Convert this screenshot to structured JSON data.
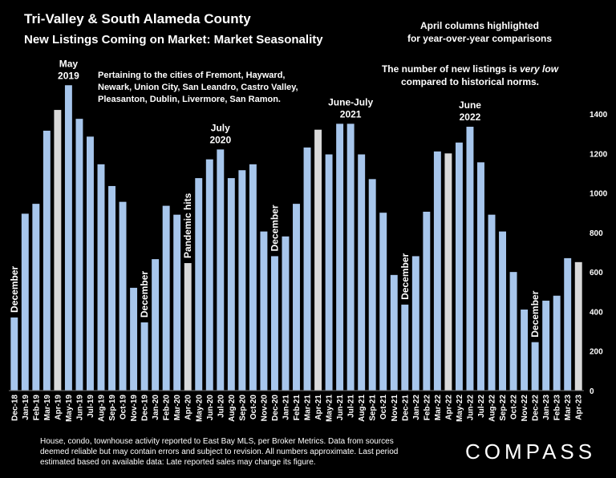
{
  "chart_data": {
    "type": "bar",
    "title": "Tri-Valley & South Alameda County",
    "subtitle": "New Listings Coming on Market: Market Seasonality",
    "cities_note": [
      "Pertaining to the cities of Fremont, Hayward,",
      "Newark, Union City, San Leandro, Castro Valley,",
      "Pleasanton, Dublin, Livermore, San Ramon."
    ],
    "highlight_note": [
      "April columns highlighted",
      "for year-over-year comparisons"
    ],
    "low_note_prefix": "The number of new listings is ",
    "low_note_emph": "very low",
    "low_note_line2": "compared to historical norms.",
    "categories": [
      "Dec-18",
      "Jan-19",
      "Feb-19",
      "Mar-19",
      "Apr-19",
      "May-19",
      "Jun-19",
      "Jul-19",
      "Aug-19",
      "Sep-19",
      "Oct-19",
      "Nov-19",
      "Dec-19",
      "Jan-20",
      "Feb-20",
      "Mar-20",
      "Apr-20",
      "May-20",
      "Jun-20",
      "Jul-20",
      "Aug-20",
      "Sep-20",
      "Oct-20",
      "Nov-20",
      "Dec-20",
      "Jan-21",
      "Feb-21",
      "Mar-21",
      "Apr-21",
      "May-21",
      "Jun-21",
      "Jul-21",
      "Aug-21",
      "Sep-21",
      "Oct-21",
      "Nov-21",
      "Dec-21",
      "Jan-22",
      "Feb-22",
      "Mar-22",
      "Apr-22",
      "May-22",
      "Jun-22",
      "Jul-22",
      "Aug-22",
      "Sep-22",
      "Oct-22",
      "Nov-22",
      "Dec-22",
      "Jan-23",
      "Feb-23",
      "Mar-23",
      "Apr-23"
    ],
    "values": [
      370,
      895,
      945,
      1315,
      1420,
      1545,
      1375,
      1285,
      1145,
      1035,
      955,
      520,
      345,
      665,
      935,
      890,
      645,
      1075,
      1170,
      1220,
      1075,
      1115,
      1145,
      805,
      680,
      780,
      945,
      1230,
      1320,
      1195,
      1350,
      1350,
      1195,
      1070,
      900,
      585,
      435,
      680,
      905,
      1210,
      1200,
      1255,
      1335,
      1155,
      890,
      805,
      600,
      410,
      245,
      455,
      480,
      670,
      650
    ],
    "highlight_indices": [
      4,
      16,
      28,
      40,
      52
    ],
    "ylim": [
      0,
      1500
    ],
    "yticks": [
      0,
      200,
      400,
      600,
      800,
      1000,
      1200,
      1400
    ],
    "grid": false,
    "colors": {
      "bar": "#a7c6ec",
      "highlight": "#d9d9d9",
      "background": "#000000",
      "text": "#ffffff"
    },
    "annotations": [
      {
        "index": 0,
        "lines": [
          "December"
        ],
        "rotate": true
      },
      {
        "index": 5,
        "lines": [
          "May",
          "2019"
        ],
        "rotate": false
      },
      {
        "index": 12,
        "lines": [
          "December"
        ],
        "rotate": true
      },
      {
        "index": 16,
        "lines": [
          "Pandemic hits"
        ],
        "rotate": true
      },
      {
        "index": 19,
        "lines": [
          "July",
          "2020"
        ],
        "rotate": false
      },
      {
        "index": 24,
        "lines": [
          "December"
        ],
        "rotate": true
      },
      {
        "index": 31,
        "lines": [
          "June-July",
          "2021"
        ],
        "rotate": false
      },
      {
        "index": 36,
        "lines": [
          "December"
        ],
        "rotate": true
      },
      {
        "index": 42,
        "lines": [
          "June",
          "2022"
        ],
        "rotate": false
      },
      {
        "index": 48,
        "lines": [
          "December"
        ],
        "rotate": true
      }
    ]
  },
  "footer": {
    "lines": [
      "House, condo, townhouse activity reported to East Bay MLS, per Broker Metrics. Data from sources",
      "deemed reliable but may contain errors and subject to revision. All numbers approximate. Last period",
      "estimated based on available data: Late reported sales may change its figure."
    ],
    "brand": "COMPASS"
  }
}
